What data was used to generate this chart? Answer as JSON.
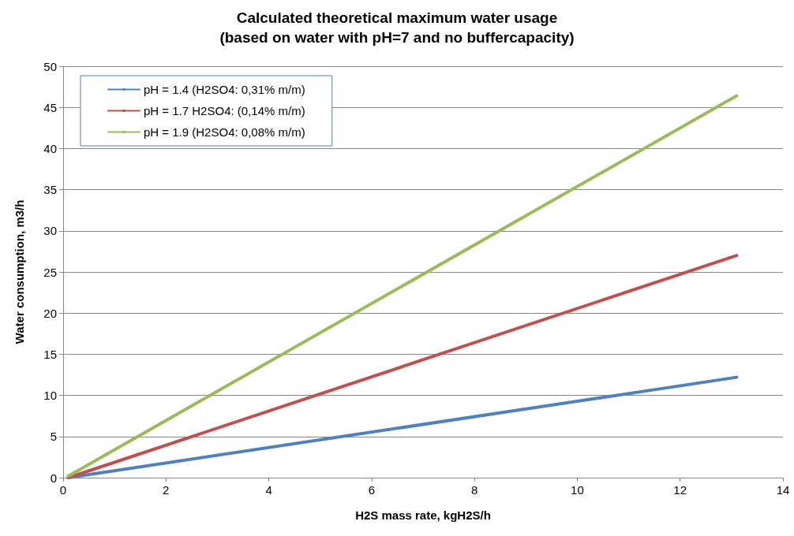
{
  "chart_data": {
    "type": "line",
    "title": "Calculated theoretical maximum water usage",
    "subtitle": "(based on water with pH=7 and no buffercapacity)",
    "xlabel": "H2S mass rate, kgH2S/h",
    "ylabel": "Water consumption, m3/h",
    "x": [
      0.1,
      13.1
    ],
    "series": [
      {
        "name": "pH = 1.4 (H2SO4: 0,31% m/m)",
        "color": "#4f81bd",
        "values": [
          0,
          12.2
        ]
      },
      {
        "name": "pH = 1.7 H2SO4: (0,14% m/m)",
        "color": "#c0504d",
        "values": [
          0,
          27
        ]
      },
      {
        "name": "pH = 1.9 (H2SO4: 0,08% m/m)",
        "color": "#9bbb59",
        "values": [
          0.2,
          46.4
        ]
      }
    ],
    "xlim": [
      0,
      14
    ],
    "xticks": [
      0,
      2,
      4,
      6,
      8,
      10,
      12,
      14
    ],
    "ylim": [
      0,
      50
    ],
    "yticks": [
      0,
      5,
      10,
      15,
      20,
      25,
      30,
      35,
      40,
      45,
      50
    ],
    "grid": "y",
    "legend": "top left",
    "marker": "none",
    "line_style": "solid"
  }
}
